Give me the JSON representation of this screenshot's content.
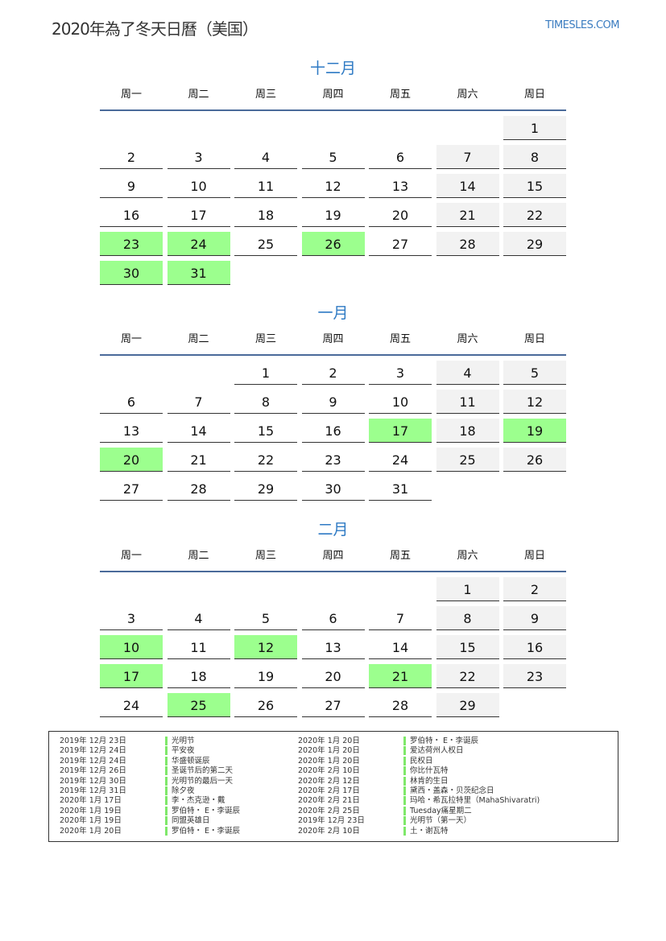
{
  "header": {
    "title": "2020年為了冬天日曆（美国）",
    "brand": "TIMESLES.COM"
  },
  "weekdays": [
    "周一",
    "周二",
    "周三",
    "周四",
    "周五",
    "周六",
    "周日"
  ],
  "colors": {
    "accent": "#2e7ac4",
    "holiday": "#9cff8e",
    "weekend": "#f2f2f2"
  },
  "months": [
    {
      "name": "十二月",
      "start_weekday": 7,
      "days": 31,
      "holidays": [
        23,
        24,
        26,
        30,
        31
      ]
    },
    {
      "name": "一月",
      "start_weekday": 3,
      "days": 31,
      "holidays": [
        17,
        19,
        20
      ]
    },
    {
      "name": "二月",
      "start_weekday": 6,
      "days": 29,
      "holidays": [
        10,
        12,
        17,
        21,
        25
      ]
    }
  ],
  "legend": [
    {
      "date": "2019年 12月 23日",
      "name": "光明节"
    },
    {
      "date": "2019年 12月 24日",
      "name": "平安夜"
    },
    {
      "date": "2019年 12月 24日",
      "name": "华盛顿诞辰"
    },
    {
      "date": "2019年 12月 26日",
      "name": "圣诞节后的第二天"
    },
    {
      "date": "2019年 12月 30日",
      "name": "光明节的最后一天"
    },
    {
      "date": "2019年 12月 31日",
      "name": "除夕夜"
    },
    {
      "date": "2020年 1月 17日",
      "name": "李・杰克逊・戴"
    },
    {
      "date": "2020年 1月 19日",
      "name": "罗伯特・ E・李诞辰"
    },
    {
      "date": "2020年 1月 19日",
      "name": "同盟英雄日"
    },
    {
      "date": "2020年 1月 20日",
      "name": "罗伯特・ E・李诞辰"
    },
    {
      "date": "2020年 1月 20日",
      "name": "罗伯特・ E・李诞辰"
    },
    {
      "date": "2020年 1月 20日",
      "name": "爱达荷州人权日"
    },
    {
      "date": "2020年 1月 20日",
      "name": "民权日"
    },
    {
      "date": "2020年 2月 10日",
      "name": "你比什瓦特"
    },
    {
      "date": "2020年 2月 12日",
      "name": "林肯的生日"
    },
    {
      "date": "2020年 2月 17日",
      "name": "黛西・盖森・贝茨纪念日"
    },
    {
      "date": "2020年 2月 21日",
      "name": "玛哈・希瓦拉特里（MahaShivaratri)"
    },
    {
      "date": "2020年 2月 25日",
      "name": "Tuesday痛星期二"
    },
    {
      "date": "2019年 12月 23日",
      "name": "光明节（第一天）"
    },
    {
      "date": "2020年 2月 10日",
      "name": "土・谢瓦特"
    }
  ]
}
